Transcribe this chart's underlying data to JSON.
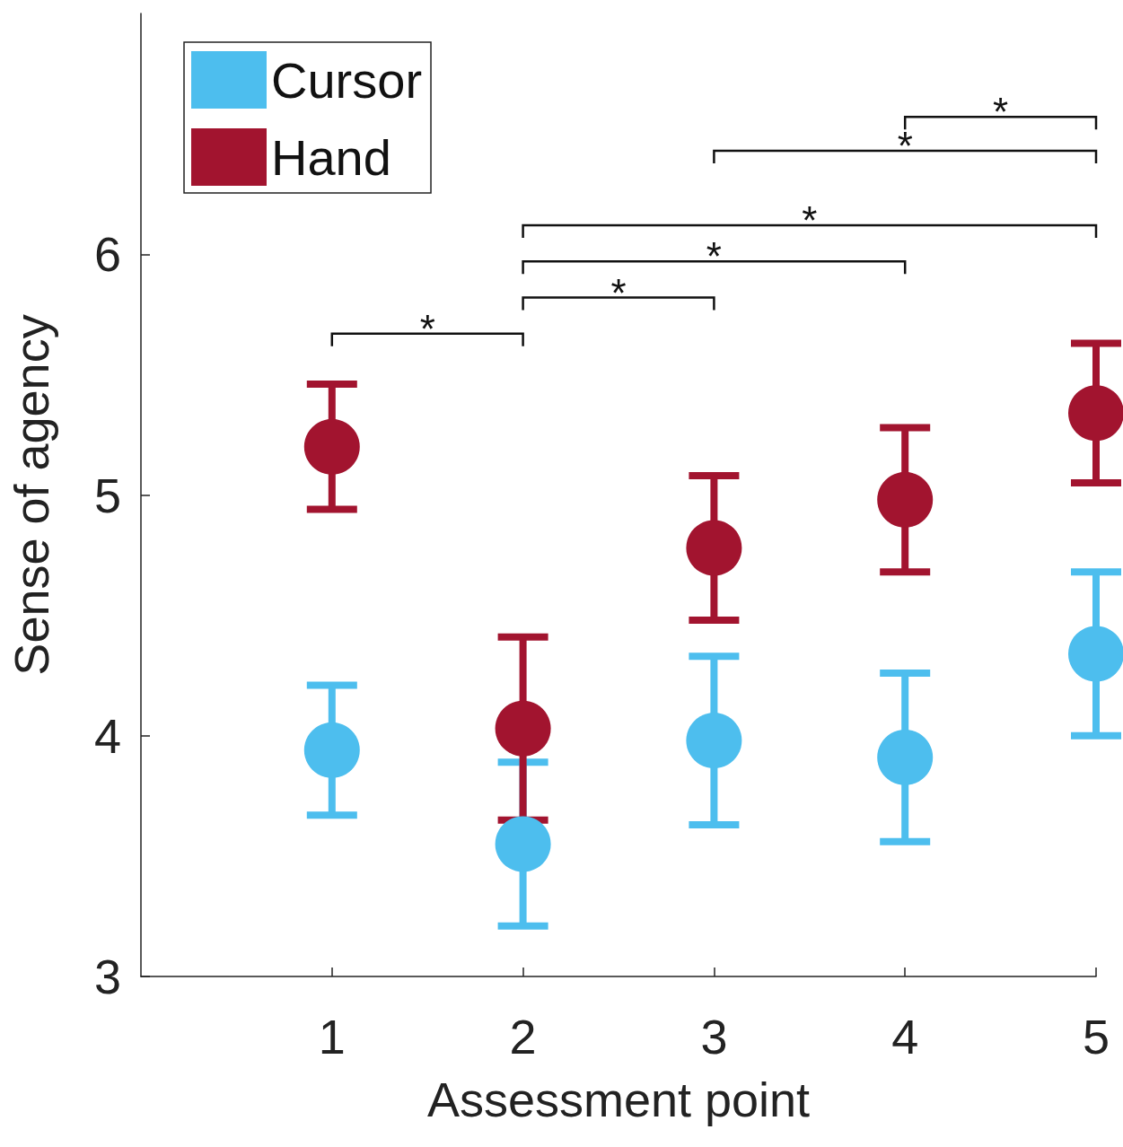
{
  "chart_data": {
    "type": "scatter",
    "xlabel": "Assessment point",
    "ylabel": "Sense of agency",
    "x": [
      1,
      2,
      3,
      4,
      5
    ],
    "xlim": [
      0,
      5
    ],
    "xticks": [
      1,
      2,
      3,
      4,
      5
    ],
    "ylim": [
      3,
      7
    ],
    "yticks": [
      3,
      4,
      5,
      6
    ],
    "series": [
      {
        "name": "Cursor",
        "color": "#4dbeee",
        "values": [
          3.94,
          3.55,
          3.98,
          3.91,
          4.34
        ],
        "errors": [
          0.27,
          0.34,
          0.35,
          0.35,
          0.34
        ]
      },
      {
        "name": "Hand",
        "color": "#a2142f",
        "values": [
          5.2,
          4.03,
          4.78,
          4.98,
          5.34
        ],
        "errors": [
          0.26,
          0.38,
          0.3,
          0.3,
          0.29
        ]
      }
    ],
    "annotations": [
      "*",
      "*",
      "*",
      "*",
      "*",
      "*"
    ],
    "marker": "circle",
    "grid": false,
    "legend": "top left"
  }
}
